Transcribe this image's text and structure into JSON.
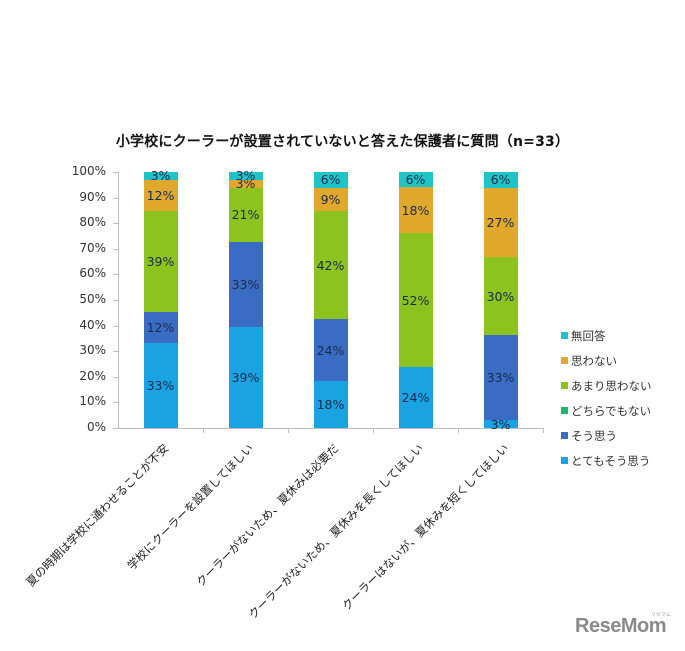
{
  "title": "小学校にクーラーが設置されていないと答えた保護者に質問（n=33）",
  "y_ticks": [
    "100%",
    "90%",
    "80%",
    "70%",
    "60%",
    "50%",
    "40%",
    "30%",
    "20%",
    "10%",
    "0%"
  ],
  "legend": [
    {
      "label": "無回答",
      "color": "#1ec4c8"
    },
    {
      "label": "思わない",
      "color": "#e0a92e"
    },
    {
      "label": "あまり思わない",
      "color": "#8cc31e"
    },
    {
      "label": "どちらでもない",
      "color": "#1fb46e"
    },
    {
      "label": "そう思う",
      "color": "#3b6cc4"
    },
    {
      "label": "とてもそう思う",
      "color": "#1aa3e3"
    }
  ],
  "logo": {
    "text": "ReseMom",
    "sub": "リセマム"
  },
  "chart_data": {
    "type": "bar",
    "stacked": true,
    "title": "小学校にクーラーが設置されていないと答えた保護者に質問（n=33）",
    "xlabel": "",
    "ylabel": "",
    "ylim": [
      0,
      100
    ],
    "y_tick_format": "percent",
    "grid": false,
    "legend_position": "right",
    "categories": [
      "夏の時期は学校に通わせることが不安",
      "学校にクーラーを設置してほしい",
      "クーラーがないため、夏休みは必要だ",
      "クーラーがないため、夏休みを長くしてほしい",
      "クーラーはないが、夏休みを短くしてほしい"
    ],
    "series": [
      {
        "name": "とてもそう思う",
        "color": "#1aa3e3",
        "values": [
          33,
          39,
          18,
          24,
          3
        ],
        "labels": [
          "33%",
          "39%",
          "18%",
          "24%",
          "3%"
        ]
      },
      {
        "name": "そう思う",
        "color": "#3b6cc4",
        "values": [
          12,
          33,
          24,
          0,
          33
        ],
        "labels": [
          "12%",
          "33%",
          "24%",
          "",
          "33%"
        ]
      },
      {
        "name": "どちらでもない",
        "color": "#1fb46e",
        "values": [
          0,
          0,
          0,
          0,
          0
        ],
        "labels": [
          "",
          "",
          "",
          "",
          ""
        ]
      },
      {
        "name": "あまり思わない",
        "color": "#8cc31e",
        "values": [
          39,
          21,
          42,
          52,
          30
        ],
        "labels": [
          "39%",
          "21%",
          "42%",
          "52%",
          "30%"
        ]
      },
      {
        "name": "思わない",
        "color": "#e0a92e",
        "values": [
          12,
          3,
          9,
          18,
          27
        ],
        "labels": [
          "12%",
          "3%",
          "9%",
          "18%",
          "27%"
        ]
      },
      {
        "name": "無回答",
        "color": "#1ec4c8",
        "values": [
          3,
          3,
          6,
          6,
          6
        ],
        "labels": [
          "3%",
          "3%",
          "6%",
          "6%",
          "6%"
        ]
      }
    ]
  }
}
